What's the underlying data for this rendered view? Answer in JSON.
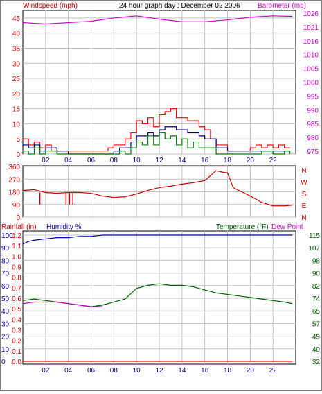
{
  "header": {
    "title": "24 hour graph day : December 02 2006",
    "left_label": "Windspeed (mph)",
    "right_label": "Barometer (mb)"
  },
  "bottom_header": {
    "rainfall_label": "Rainfall (in)",
    "humidity_label": "Humidity %",
    "temperature_label": "Temperature (°F)",
    "dewpoint_label": "Dew Point"
  },
  "colors": {
    "wind_speed": "#ff0000",
    "wind_gust_alt": "#007f00",
    "wind_avg": "#00007f",
    "barometer": "#d000d0",
    "direction": "#cc0000",
    "humidity": "#0000a0",
    "temperature": "#006000",
    "dewpoint": "#c000c0",
    "rain": "#ff0000",
    "grid": "#c0c0c0",
    "axis_text_left": "#cc0000",
    "axis_text_right_baro": "#cc00cc",
    "axis_text_right_temp": "#006000",
    "axis_text_humidity": "#0000a0",
    "frame": "#000000"
  },
  "chart_data": [
    {
      "id": "wind_baro",
      "type": "line",
      "title": "24 hour graph day : December 02 2006",
      "xlabel": "",
      "ylabel": "Windspeed (mph)",
      "y2label": "Barometer (mb)",
      "x_ticks": [
        "02",
        "04",
        "06",
        "08",
        "10",
        "12",
        "14",
        "16",
        "18",
        "20",
        "22"
      ],
      "x_range": [
        0,
        24
      ],
      "y_ticks": [
        "0",
        "5",
        "10",
        "15",
        "20",
        "25",
        "30",
        "35",
        "40",
        "45"
      ],
      "ylim": [
        0,
        47.5
      ],
      "y2_ticks": [
        "975",
        "980",
        "985",
        "990",
        "995",
        "1000",
        "1005",
        "1010",
        "1016",
        "1021",
        "1026"
      ],
      "y2lim": [
        974,
        1027
      ],
      "grid": true,
      "series": [
        {
          "name": "",
          "axis": "y",
          "hours": [
            0,
            0.5,
            1,
            1.5,
            2,
            2.5,
            3,
            4,
            5,
            6,
            7,
            7.5,
            8,
            8.5,
            9,
            9.5,
            10,
            10.5,
            11,
            11.5,
            12,
            12.5,
            13,
            13.5,
            14,
            14.5,
            15,
            15.5,
            16,
            16.5,
            17,
            18,
            19,
            20,
            20.5,
            21,
            21.5,
            22,
            22.5,
            23,
            23.5
          ],
          "values": [
            5,
            3,
            4,
            2,
            3,
            1,
            1,
            1,
            1,
            1,
            1,
            2,
            3,
            3,
            5,
            7,
            11,
            10,
            12,
            9,
            13,
            14,
            15,
            12,
            12,
            11,
            11,
            9,
            8,
            5,
            3,
            1,
            1,
            2,
            3,
            2,
            3,
            2,
            3,
            2,
            2
          ]
        },
        {
          "name": "",
          "axis": "y",
          "hours": [
            0,
            0.5,
            1,
            1.5,
            2,
            3,
            4,
            5,
            6,
            7,
            8,
            8.5,
            9,
            9.5,
            10,
            10.5,
            11,
            11.5,
            12,
            12.5,
            13,
            13.5,
            14,
            14.5,
            15,
            15.5,
            16,
            17,
            18,
            19,
            20,
            21,
            22,
            23,
            23.5
          ],
          "values": [
            3,
            2,
            3,
            1,
            2,
            1,
            0,
            0,
            0,
            0,
            1,
            2,
            2,
            4,
            6,
            6,
            7,
            6,
            8,
            9,
            9,
            8,
            8,
            7,
            7,
            6,
            5,
            2,
            1,
            1,
            1,
            1,
            1,
            1,
            1
          ]
        },
        {
          "name": "",
          "axis": "y",
          "hours": [
            0,
            0.5,
            1,
            1.5,
            2,
            3,
            4,
            5,
            6,
            7,
            8,
            8.5,
            9,
            9.5,
            10,
            10.5,
            11,
            11.5,
            12,
            12.5,
            13,
            13.5,
            14,
            14.5,
            15,
            15.5,
            16,
            17,
            18,
            19,
            20,
            21,
            22,
            23,
            23.5
          ],
          "values": [
            1,
            0,
            2,
            0,
            1,
            0,
            0,
            0,
            0,
            0,
            0,
            1,
            0,
            2,
            4,
            3,
            6,
            3,
            7,
            5,
            6,
            3,
            5,
            2,
            4,
            2,
            2,
            0,
            0,
            0,
            0,
            1,
            0,
            1,
            0
          ]
        },
        {
          "name": "",
          "axis": "y2",
          "hours": [
            0,
            2,
            4,
            6,
            8,
            10,
            12,
            14,
            16,
            18,
            20,
            22,
            23.7
          ],
          "values": [
            1022.5,
            1022.0,
            1022.5,
            1023.0,
            1024.2,
            1025.0,
            1023.8,
            1022.8,
            1022.8,
            1023.5,
            1024.5,
            1025.0,
            1024.8
          ]
        }
      ]
    },
    {
      "id": "wind_direction",
      "type": "line",
      "xlabel": "",
      "ylabel": "",
      "y_ticks": [
        "0",
        "90",
        "180",
        "270",
        "360"
      ],
      "ylim": [
        0,
        365
      ],
      "y2_ticks": [
        "N",
        "W",
        "S",
        "E",
        "N"
      ],
      "x_range": [
        0,
        24
      ],
      "grid": true,
      "series": [
        {
          "name": "",
          "hours": [
            0,
            1,
            2,
            3,
            4,
            5,
            6,
            7,
            8,
            9,
            10,
            11,
            12,
            13,
            14,
            15,
            16,
            17,
            17.5,
            18,
            18.5,
            19,
            20,
            21,
            22,
            23,
            23.7
          ],
          "values": [
            190,
            195,
            175,
            170,
            175,
            175,
            170,
            150,
            140,
            145,
            165,
            190,
            210,
            220,
            235,
            245,
            260,
            330,
            320,
            315,
            210,
            190,
            150,
            105,
            80,
            80,
            85
          ]
        },
        {
          "name": "",
          "hours": [
            1.5,
            3.8,
            4.1,
            4.4
          ],
          "values": [
            90,
            90,
            90,
            90
          ]
        }
      ]
    },
    {
      "id": "rain_humidity_temp",
      "type": "line",
      "xlabel": "",
      "ylabel": "Rainfall (in)",
      "y_ticks_rain": [
        "0.0",
        "0.1",
        "0.2",
        "0.3",
        "0.4",
        "0.5",
        "0.6",
        "0.7",
        "0.8",
        "0.9",
        "1.0",
        "1.1",
        "1.2"
      ],
      "y_ticks_humidity": [
        "0",
        "10",
        "20",
        "30",
        "40",
        "50",
        "60",
        "70",
        "80",
        "90",
        "100"
      ],
      "y2_ticks": [
        "32",
        "40",
        "49",
        "57",
        "65",
        "74",
        "82",
        "90",
        "98",
        "107",
        "115"
      ],
      "y2lim": [
        32,
        115
      ],
      "x_ticks": [
        "02",
        "04",
        "06",
        "08",
        "10",
        "12",
        "14",
        "16",
        "18",
        "20",
        "22"
      ],
      "x_range": [
        0,
        24
      ],
      "grid": true,
      "series": [
        {
          "name": "Humidity %",
          "axis": "humidity",
          "hours": [
            0,
            0.5,
            1,
            2,
            3,
            4,
            5,
            6,
            7,
            8,
            12,
            16,
            20,
            23.7
          ],
          "values": [
            93,
            95,
            96,
            97,
            98,
            98,
            99,
            99,
            100,
            100,
            100,
            100,
            100,
            100
          ]
        },
        {
          "name": "Temperature (°F)",
          "axis": "temp",
          "hours": [
            0,
            1,
            2,
            3,
            4,
            5,
            6,
            7,
            8,
            9,
            10,
            11,
            12,
            13,
            14,
            15,
            16,
            17,
            18,
            19,
            20,
            21,
            22,
            23,
            23.7
          ],
          "values": [
            72,
            73,
            72,
            71,
            70,
            69,
            68,
            69,
            71,
            73,
            80,
            82,
            83,
            82,
            82,
            81,
            79,
            77,
            76,
            75,
            74,
            73,
            72,
            71,
            70
          ]
        },
        {
          "name": "Dew Point",
          "axis": "temp",
          "hours": [
            0,
            1,
            2,
            3,
            4,
            5,
            6,
            7
          ],
          "values": [
            70,
            71,
            71,
            71,
            70,
            69,
            68,
            68
          ]
        },
        {
          "name": "Rainfall (in)",
          "axis": "rain",
          "hours": [
            0,
            23.7
          ],
          "values": [
            0,
            0
          ]
        }
      ]
    }
  ]
}
